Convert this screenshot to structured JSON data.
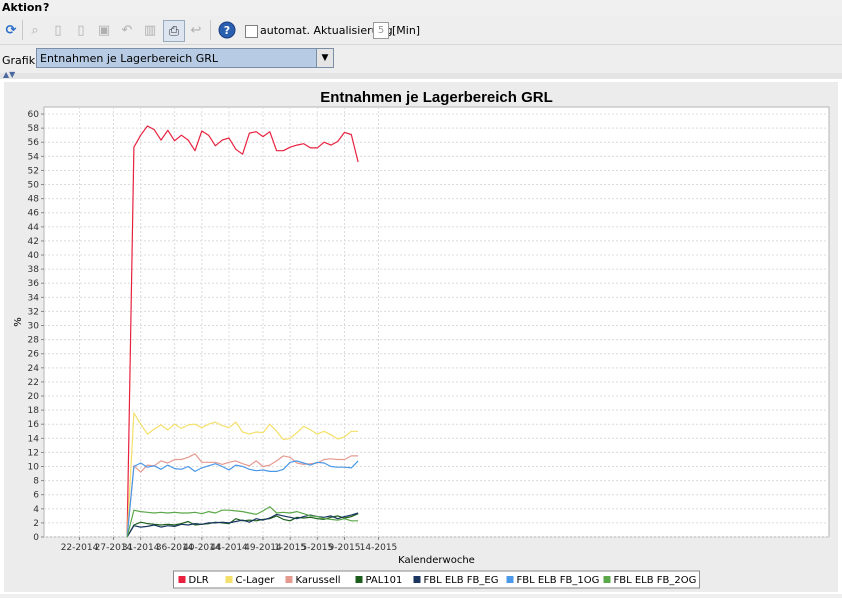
{
  "menu": {
    "action": "Aktion",
    "help": "?"
  },
  "toolbar": {
    "icons": [
      "refresh-icon",
      "zoom-icon",
      "new-document-icon",
      "edit-document-icon",
      "save-icon",
      "undo-icon",
      "delete-icon",
      "print-icon",
      "redo-icon",
      "help-icon"
    ],
    "auto_update_label": "automat. Aktualisierung",
    "auto_update_checked": false,
    "interval_value": "5",
    "interval_unit": "[Min]"
  },
  "grafik": {
    "label": "Grafik",
    "selected": "Entnahmen je Lagerbereich GRL"
  },
  "chart_data": {
    "type": "line",
    "title": "Entnahmen je Lagerbereich GRL",
    "xlabel": "Kalenderwoche",
    "ylabel": "%",
    "ylim": [
      0,
      61
    ],
    "yticks": [
      0,
      2,
      4,
      6,
      8,
      10,
      12,
      14,
      16,
      18,
      20,
      22,
      24,
      26,
      28,
      30,
      32,
      34,
      36,
      38,
      40,
      42,
      44,
      46,
      48,
      50,
      52,
      54,
      56,
      58,
      60
    ],
    "x_ticks": [
      "22-2014",
      "27-2014",
      "31-2014",
      "36-2014",
      "40-2014",
      "44-2014",
      "49-2014",
      "1-2015",
      "5-2015",
      "9-2015",
      "14-2015"
    ],
    "x": [
      "29-2014",
      "30-2014",
      "31-2014",
      "32-2014",
      "33-2014",
      "34-2014",
      "35-2014",
      "36-2014",
      "37-2014",
      "38-2014",
      "39-2014",
      "40-2014",
      "41-2014",
      "42-2014",
      "43-2014",
      "44-2014",
      "45-2014",
      "46-2014",
      "47-2014",
      "48-2014",
      "49-2014",
      "50-2014",
      "51-2014",
      "52-2014",
      "1-2015",
      "2-2015",
      "3-2015",
      "4-2015",
      "5-2015",
      "6-2015",
      "7-2015",
      "8-2015",
      "9-2015",
      "10-2015",
      "11-2015"
    ],
    "grid": true,
    "legend_position": "bottom",
    "series": [
      {
        "name": "DLR",
        "color": "#e8213f",
        "values": [
          0,
          55.3,
          57.0,
          58.3,
          57.8,
          56.3,
          57.7,
          56.2,
          57.0,
          56.3,
          54.8,
          57.6,
          57.0,
          55.5,
          56.3,
          56.6,
          55.0,
          54.3,
          57.3,
          57.5,
          56.8,
          57.5,
          54.8,
          54.8,
          55.3,
          55.6,
          55.8,
          55.2,
          55.2,
          56.0,
          55.6,
          56.1,
          57.4,
          57.1,
          53.2
        ]
      },
      {
        "name": "C-Lager",
        "color": "#f4e06a",
        "values": [
          0,
          17.6,
          16.0,
          14.6,
          15.3,
          15.9,
          15.2,
          16.0,
          15.4,
          15.9,
          16.0,
          15.5,
          16.0,
          16.3,
          15.8,
          15.5,
          16.3,
          14.9,
          14.6,
          14.9,
          14.8,
          16.0,
          15.0,
          13.8,
          14.0,
          14.8,
          15.7,
          15.2,
          14.6,
          15.0,
          14.5,
          13.9,
          14.2,
          15.0,
          15.0
        ]
      },
      {
        "name": "Karussell",
        "color": "#e59a90",
        "values": [
          0,
          10.1,
          9.2,
          10.2,
          10.1,
          10.8,
          10.5,
          11.0,
          11.0,
          11.3,
          11.8,
          10.6,
          10.6,
          10.6,
          10.3,
          10.6,
          10.8,
          10.4,
          10.1,
          10.8,
          10.0,
          10.2,
          10.8,
          11.5,
          11.3,
          10.5,
          10.3,
          10.4,
          10.5,
          11.0,
          11.1,
          11.0,
          11.0,
          11.5,
          11.5
        ]
      },
      {
        "name": "PAL101",
        "color": "#1b5e1b",
        "values": [
          0,
          1.7,
          2.1,
          1.9,
          1.8,
          1.7,
          1.8,
          1.7,
          1.9,
          2.2,
          1.7,
          1.8,
          1.9,
          2.1,
          2.0,
          1.9,
          2.6,
          2.3,
          2.4,
          2.3,
          2.5,
          2.6,
          3.0,
          2.5,
          2.3,
          2.8,
          2.7,
          2.8,
          2.6,
          2.5,
          2.8,
          3.0,
          2.7,
          2.9,
          3.3
        ]
      },
      {
        "name": "FBL ELB FB_EG",
        "color": "#1a3660",
        "values": [
          0,
          1.6,
          1.4,
          1.5,
          1.7,
          1.4,
          1.6,
          1.5,
          1.8,
          1.7,
          1.9,
          1.8,
          2.0,
          2.0,
          2.1,
          2.0,
          2.2,
          2.4,
          2.1,
          2.6,
          2.4,
          2.7,
          3.2,
          3.0,
          2.8,
          2.6,
          2.9,
          3.1,
          2.9,
          2.8,
          3.0,
          2.6,
          2.9,
          3.1,
          3.4
        ]
      },
      {
        "name": "FBL ELB FB_1OG",
        "color": "#4a98e8",
        "values": [
          0,
          10.0,
          10.5,
          9.9,
          10.1,
          9.6,
          10.2,
          9.7,
          9.6,
          10.0,
          9.3,
          9.8,
          10.1,
          10.4,
          10.0,
          9.5,
          10.2,
          10.0,
          9.6,
          9.4,
          9.5,
          9.3,
          9.3,
          9.6,
          10.6,
          10.8,
          10.5,
          10.2,
          10.6,
          10.5,
          10.0,
          9.9,
          9.9,
          9.8,
          10.8
        ]
      },
      {
        "name": "FBL ELB FB_2OG",
        "color": "#5ba84a",
        "values": [
          0,
          3.8,
          3.6,
          3.5,
          3.4,
          3.5,
          3.4,
          3.5,
          3.4,
          3.4,
          3.5,
          3.3,
          3.6,
          3.4,
          3.8,
          3.8,
          3.7,
          3.6,
          3.4,
          3.2,
          3.7,
          4.3,
          3.4,
          3.5,
          3.4,
          3.6,
          3.3,
          3.0,
          2.9,
          2.6,
          2.5,
          2.4,
          2.6,
          2.3,
          2.3
        ]
      }
    ]
  }
}
